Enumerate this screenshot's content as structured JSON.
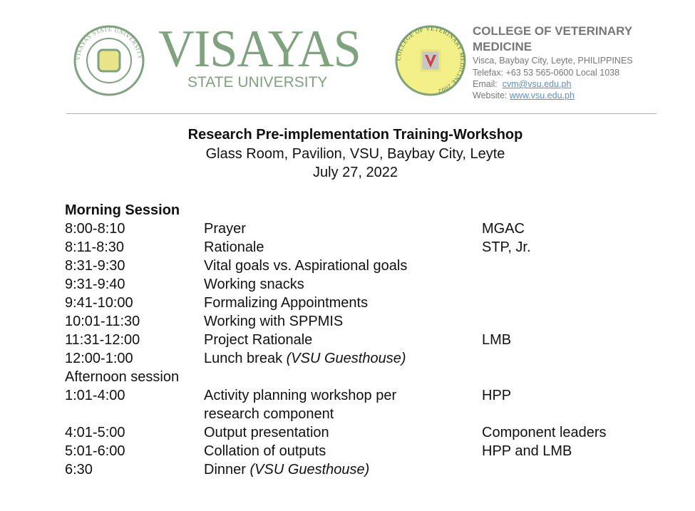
{
  "header": {
    "university_logo_text": "VISAYAS",
    "university_subtitle": "STATE UNIVERSITY",
    "university_seal_text": "VISAYAS STATE UNIVERSITY",
    "college_seal_text": "COLLEGE OF VETERINARY MEDICINE 2002",
    "college_name_line1": "COLLEGE OF VETERINARY",
    "college_name_line2": "MEDICINE",
    "address": "Visca, Baybay City, Leyte, PHILIPPINES",
    "telefax": "Telefax: +63 53 565-0600 Local 1038",
    "email_label": "Email:",
    "email": "cvm@vsu.edu.ph",
    "website_label": "Website:",
    "website": "www.vsu.edu.ph",
    "colors": {
      "green": "#7fa27f",
      "gray": "#777777",
      "link": "#5b8fc9"
    }
  },
  "event": {
    "title": "Research Pre-implementation Training-Workshop",
    "venue": "Glass Room, Pavilion, VSU, Baybay City, Leyte",
    "date": "July 27, 2022"
  },
  "schedule": {
    "morning_label": "Morning Session",
    "afternoon_label": "Afternoon session",
    "morning": [
      {
        "time": "8:00-8:10",
        "activity": "Prayer",
        "note": "",
        "person": "MGAC"
      },
      {
        "time": "8:11-8:30",
        "activity": "Rationale",
        "note": "",
        "person": "STP, Jr."
      },
      {
        "time": "8:31-9:30",
        "activity": "Vital goals vs. Aspirational goals",
        "note": "",
        "person": ""
      },
      {
        "time": "9:31-9:40",
        "activity": "Working snacks",
        "note": "",
        "person": ""
      },
      {
        "time": "9:41-10:00",
        "activity": "Formalizing Appointments",
        "note": "",
        "person": ""
      },
      {
        "time": "10:01-11:30",
        "activity": "Working with SPPMIS",
        "note": "",
        "person": ""
      },
      {
        "time": "11:31-12:00",
        "activity": "Project Rationale",
        "note": "",
        "person": "LMB"
      },
      {
        "time": "12:00-1:00",
        "activity": "Lunch break ",
        "note": "(VSU Guesthouse)",
        "person": ""
      }
    ],
    "afternoon": [
      {
        "time": "1:01-4:00",
        "activity": "Activity planning workshop per",
        "activity2": "research component",
        "note": "",
        "person": "HPP"
      },
      {
        "time": "4:01-5:00",
        "activity": "Output presentation",
        "note": "",
        "person": "Component leaders"
      },
      {
        "time": "5:01-6:00",
        "activity": "Collation of outputs",
        "note": "",
        "person": "HPP and LMB"
      },
      {
        "time": "6:30",
        "activity": "Dinner ",
        "note": "(VSU Guesthouse)",
        "person": ""
      }
    ]
  }
}
